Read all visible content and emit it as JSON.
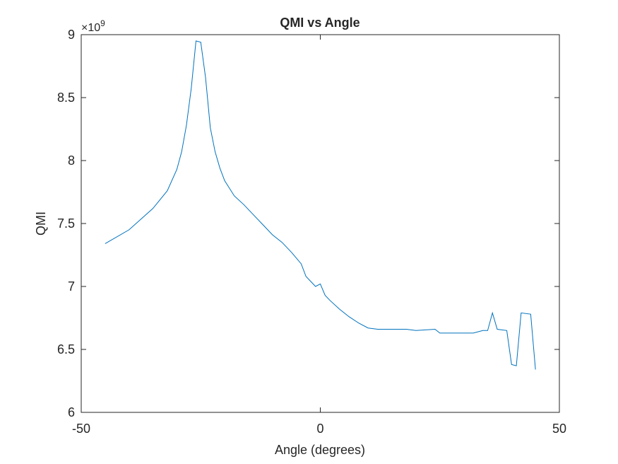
{
  "chart_data": {
    "type": "line",
    "title": "QMI vs Angle",
    "xlabel": "Angle (degrees)",
    "ylabel": "QMI",
    "y_multiplier": {
      "base": "×10",
      "exponent": "9"
    },
    "color": "#0072bd",
    "x": [
      -45,
      -40,
      -35,
      -32,
      -30,
      -29,
      -28,
      -27,
      -26,
      -25,
      -24,
      -23,
      -22,
      -21,
      -20,
      -19,
      -18,
      -16,
      -14,
      -12,
      -10,
      -8,
      -6,
      -4,
      -3,
      -2,
      -1,
      0,
      1,
      2,
      4,
      6,
      8,
      10,
      12,
      14,
      18,
      20,
      24,
      25,
      28,
      32,
      34,
      35,
      36,
      37,
      39,
      40,
      41,
      42,
      44,
      45
    ],
    "values": [
      7.34,
      7.45,
      7.62,
      7.76,
      7.93,
      8.07,
      8.28,
      8.57,
      8.95,
      8.94,
      8.66,
      8.26,
      8.07,
      7.94,
      7.84,
      7.78,
      7.72,
      7.65,
      7.57,
      7.49,
      7.41,
      7.35,
      7.27,
      7.18,
      7.08,
      7.04,
      7.0,
      7.02,
      6.93,
      6.89,
      6.82,
      6.76,
      6.71,
      6.67,
      6.66,
      6.66,
      6.66,
      6.65,
      6.66,
      6.63,
      6.63,
      6.63,
      6.65,
      6.65,
      6.79,
      6.66,
      6.65,
      6.38,
      6.37,
      6.79,
      6.78,
      6.34
    ],
    "xlim": [
      -50,
      50
    ],
    "xticks": [
      -50,
      0,
      50
    ],
    "ylim": [
      6,
      9
    ],
    "yticks": [
      6,
      6.5,
      7,
      7.5,
      8,
      8.5,
      9
    ]
  }
}
